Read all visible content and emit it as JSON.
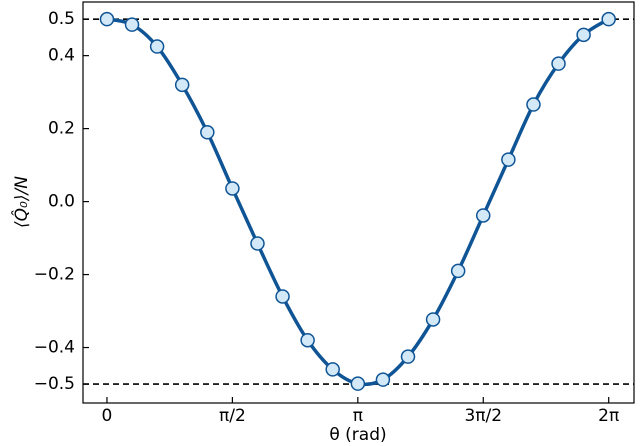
{
  "chart_data": {
    "type": "line",
    "x_label": "θ (rad)",
    "y_label": "⟨Q̂₀⟩/N",
    "x": [
      0,
      0.314,
      0.628,
      0.942,
      1.257,
      1.571,
      1.885,
      2.199,
      2.513,
      2.827,
      3.142,
      3.456,
      3.77,
      4.084,
      4.398,
      4.712,
      5.027,
      5.341,
      5.655,
      5.969,
      6.283
    ],
    "values": [
      0.5,
      0.485,
      0.425,
      0.32,
      0.19,
      0.036,
      -0.115,
      -0.26,
      -0.38,
      -0.46,
      -0.499,
      -0.488,
      -0.425,
      -0.323,
      -0.19,
      -0.038,
      0.115,
      0.266,
      0.378,
      0.457,
      0.5
    ],
    "color": "#0f5596",
    "marker_color": "#d4e9f7",
    "hlines": [
      0.5,
      -0.5
    ],
    "xlim": [
      -0.3,
      6.6
    ],
    "ylim": [
      -0.552,
      0.547
    ],
    "xticks": [
      {
        "value": 0,
        "label": "0"
      },
      {
        "value": 1.5708,
        "label": "π/2"
      },
      {
        "value": 3.1416,
        "label": "π"
      },
      {
        "value": 4.7124,
        "label": "3π/2"
      },
      {
        "value": 6.2832,
        "label": "2π"
      }
    ],
    "yticks": [
      {
        "value": -0.5,
        "label": "−0.5"
      },
      {
        "value": -0.4,
        "label": "−0.4"
      },
      {
        "value": -0.2,
        "label": "−0.2"
      },
      {
        "value": 0.0,
        "label": "0.0"
      },
      0.2,
      0.4,
      0.5
    ]
  }
}
